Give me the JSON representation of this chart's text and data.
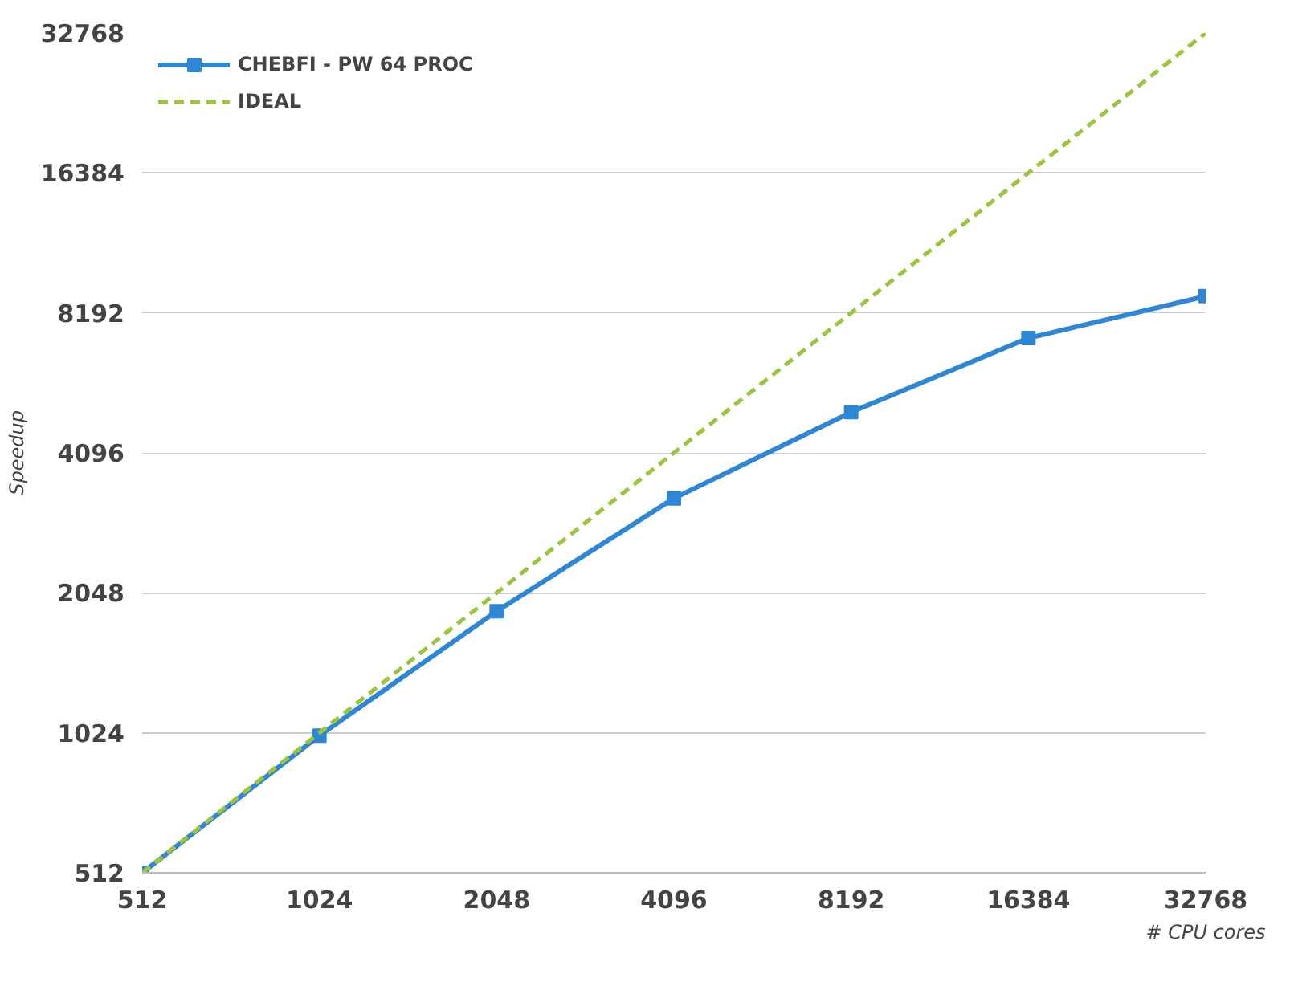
{
  "chart_data": {
    "type": "line",
    "xlabel": "# CPU cores",
    "ylabel": "Speedup",
    "log": "xy",
    "x": [
      512,
      1024,
      2048,
      4096,
      8192,
      16384,
      32768
    ],
    "series": [
      {
        "name": "CHEBFI - PW 64 PROC",
        "color": "#2e86d4",
        "values": [
          512,
          1010,
          1870,
          3270,
          5010,
          7230,
          8900
        ],
        "marker": "square",
        "line_style": "solid"
      },
      {
        "name": "IDEAL",
        "color": "#9bc53d",
        "values": [
          512,
          1024,
          2048,
          4096,
          8192,
          16384,
          32768
        ],
        "marker": "none",
        "line_style": "dashed"
      }
    ],
    "xlim": [
      512,
      32768
    ],
    "ylim": [
      512,
      32768
    ],
    "xticks": [
      512,
      1024,
      2048,
      4096,
      8192,
      16384,
      32768
    ],
    "yticks": [
      512,
      1024,
      2048,
      4096,
      8192,
      16384,
      32768
    ],
    "grid": "y",
    "legend": "top left"
  }
}
